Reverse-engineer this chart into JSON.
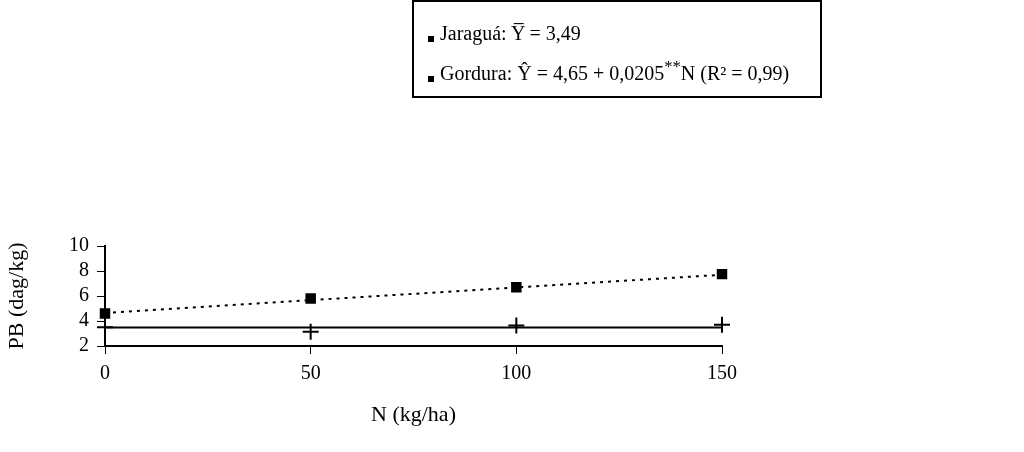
{
  "chart_data": {
    "type": "scatter",
    "xlabel": "N (kg/ha)",
    "ylabel": "PB (dag/kg)",
    "xlim": [
      0,
      150
    ],
    "xticks": [
      0,
      50,
      100,
      150
    ],
    "ylim": [
      2,
      10
    ],
    "yticks": [
      2,
      4,
      6,
      8,
      10
    ],
    "legend": "top right",
    "series": [
      {
        "type": "scatter",
        "name": "Jaraguá:  Y̅ = 3,49",
        "color": "#000000",
        "marker": "cross",
        "x": [
          0,
          50,
          100,
          150
        ],
        "values": [
          3.5,
          3.15,
          3.65,
          3.7
        ]
      },
      {
        "type": "line",
        "color": "#000000",
        "marker": "none",
        "line_style": "solid",
        "x": [
          0,
          150
        ],
        "values": [
          3.49,
          3.49
        ]
      },
      {
        "type": "scatter",
        "name": "Gordura:  Ŷ =  4,65 + 0,0205$^{**}$N (R² = 0,99)",
        "color": "#000000",
        "marker": "square",
        "x": [
          0,
          50,
          100,
          150
        ],
        "values": [
          4.6,
          5.8,
          6.7,
          7.75
        ]
      },
      {
        "type": "line",
        "color": "#000000",
        "marker": "none",
        "line_style": "dotted",
        "x": [
          0,
          150
        ],
        "values": [
          4.65,
          7.7
        ]
      }
    ]
  }
}
